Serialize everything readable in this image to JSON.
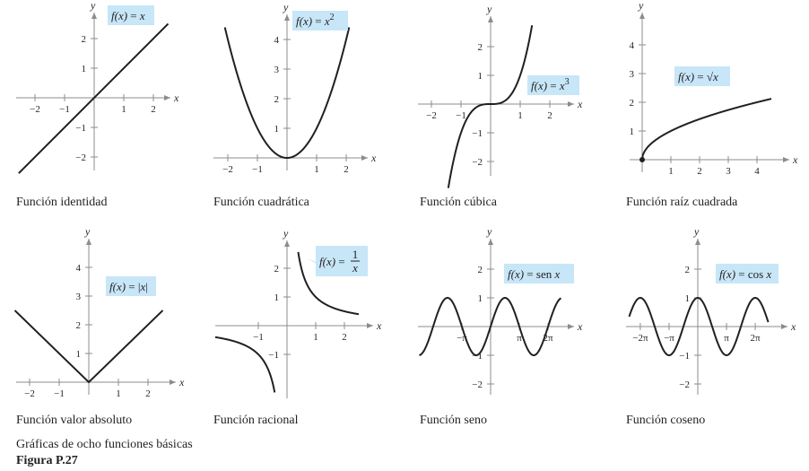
{
  "panels": [
    {
      "id": "identidad",
      "caption": "Función identidad",
      "fn": "identity",
      "xticks": [
        "−2",
        "−1",
        "1",
        "2"
      ],
      "yticks": [
        "2",
        "1",
        "−1",
        "−2"
      ],
      "label": {
        "parts": [
          [
            "f(x)",
            "it"
          ],
          [
            " = ",
            ""
          ],
          [
            "x",
            "it"
          ]
        ]
      }
    },
    {
      "id": "cuadratica",
      "caption": "Función cuadrática",
      "fn": "square",
      "xticks": [
        "−2",
        "−1",
        "1",
        "2"
      ],
      "yticks": [
        "4",
        "3",
        "2",
        "1"
      ],
      "label": {
        "parts": [
          [
            "f(x)",
            "it"
          ],
          [
            " = ",
            ""
          ],
          [
            "x",
            "it"
          ]
        ],
        "sup": "2"
      }
    },
    {
      "id": "cubica",
      "caption": "Función cúbica",
      "fn": "cube",
      "xticks": [
        "−2",
        "−1",
        "1",
        "2"
      ],
      "yticks": [
        "2",
        "1",
        "−1",
        "−2"
      ],
      "label": {
        "parts": [
          [
            "f(x)",
            "it"
          ],
          [
            " = ",
            ""
          ],
          [
            "x",
            "it"
          ]
        ],
        "sup": "3"
      }
    },
    {
      "id": "raiz",
      "caption": "Función raíz cuadrada",
      "fn": "sqrt",
      "xticks": [
        "1",
        "2",
        "3",
        "4"
      ],
      "yticks": [
        "4",
        "3",
        "2",
        "1"
      ],
      "label": {
        "parts": [
          [
            "f(x)",
            "it"
          ],
          [
            " = √",
            ""
          ],
          [
            "x",
            "it"
          ]
        ]
      }
    },
    {
      "id": "absoluto",
      "caption": "Función valor absoluto",
      "fn": "abs",
      "xticks": [
        "−2",
        "−1",
        "1",
        "2"
      ],
      "yticks": [
        "4",
        "3",
        "2",
        "1"
      ],
      "label": {
        "parts": [
          [
            "f(x)",
            "it"
          ],
          [
            " = |",
            ""
          ],
          [
            "x",
            "it"
          ],
          [
            "|",
            ""
          ]
        ]
      }
    },
    {
      "id": "racional",
      "caption": "Función racional",
      "fn": "reciprocal",
      "xticks": [
        "−1",
        "1",
        "2"
      ],
      "yticks": [
        "2",
        "1",
        "−1"
      ],
      "label": {
        "parts": [
          [
            "f(x)",
            "it"
          ],
          [
            " = ",
            ""
          ]
        ],
        "frac": [
          "1",
          "x"
        ]
      }
    },
    {
      "id": "seno",
      "caption": "Función seno",
      "fn": "sin",
      "xticks": [
        "−π",
        "π",
        "2π"
      ],
      "yticks": [
        "2",
        "1",
        "−1",
        "−2"
      ],
      "label": {
        "parts": [
          [
            "f(x)",
            "it"
          ],
          [
            " = sen ",
            ""
          ],
          [
            "x",
            "it"
          ]
        ]
      }
    },
    {
      "id": "coseno",
      "caption": "Función coseno",
      "fn": "cos",
      "xticks": [
        "−2π",
        "−π",
        "π",
        "2π"
      ],
      "yticks": [
        "2",
        "1",
        "−1",
        "−2"
      ],
      "label": {
        "parts": [
          [
            "f(x)",
            "it"
          ],
          [
            " = cos ",
            ""
          ],
          [
            "x",
            "it"
          ]
        ]
      }
    }
  ],
  "axis_names": {
    "x": "x",
    "y": "y"
  },
  "figure": {
    "title": "Gráficas de ocho funciones básicas",
    "number": "Figura P.27"
  }
}
